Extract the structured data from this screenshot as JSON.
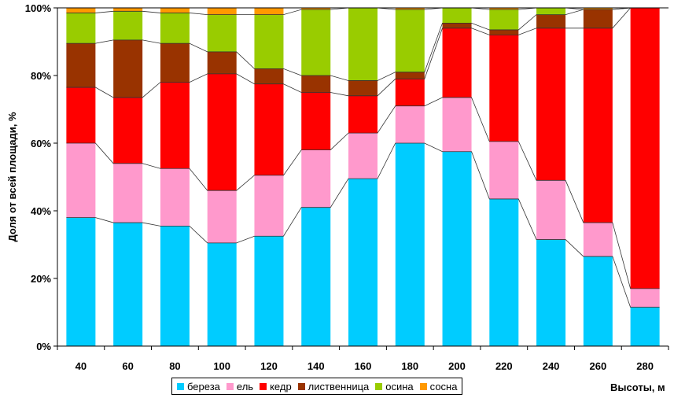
{
  "chart_data": {
    "type": "bar",
    "stacked": true,
    "normalized": true,
    "categories": [
      "40",
      "60",
      "80",
      "100",
      "120",
      "140",
      "160",
      "180",
      "200",
      "220",
      "240",
      "260",
      "280"
    ],
    "series": [
      {
        "name": "береза",
        "color": "#00CCFF",
        "values": [
          38,
          36.5,
          35.5,
          30.5,
          32.5,
          41,
          49.5,
          60,
          57.5,
          43.5,
          31.5,
          26.5,
          11.5
        ]
      },
      {
        "name": "ель",
        "color": "#FF99CC",
        "values": [
          22,
          17.5,
          17,
          15.5,
          18,
          17,
          13.5,
          11,
          16,
          17,
          17.5,
          10,
          5.5
        ]
      },
      {
        "name": "кедр",
        "color": "#FF0000",
        "values": [
          16.5,
          19.5,
          25.5,
          34.5,
          27,
          17,
          11,
          8,
          20.5,
          31.5,
          45,
          57.5,
          83
        ]
      },
      {
        "name": "лиственница",
        "color": "#993300",
        "values": [
          13,
          17,
          11.5,
          6.5,
          4.5,
          5,
          4.5,
          2,
          1.5,
          1.5,
          4,
          5.5,
          0
        ]
      },
      {
        "name": "осина",
        "color": "#99CC00",
        "values": [
          9,
          8.5,
          9,
          11,
          16,
          19.5,
          21.5,
          18.5,
          4.5,
          6,
          2,
          0,
          0
        ]
      },
      {
        "name": "сосна",
        "color": "#FF9900",
        "values": [
          1.5,
          1,
          1.5,
          2,
          2,
          0.5,
          0,
          0.5,
          0,
          0.5,
          0,
          0.5,
          0
        ]
      }
    ],
    "ylim": [
      0,
      100
    ],
    "yticks": [
      "0%",
      "20%",
      "40%",
      "60%",
      "80%",
      "100%"
    ],
    "ytick_values": [
      0,
      20,
      40,
      60,
      80,
      100
    ],
    "ylabel": "Доля от всей площади, %",
    "xlabel": "Высоты, м",
    "legend_position": "bottom"
  }
}
